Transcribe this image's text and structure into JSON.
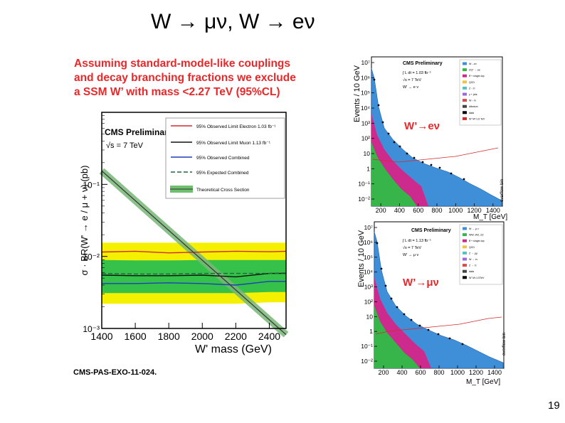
{
  "slide": {
    "title": "W → μν, W → eν",
    "claim_lines": [
      "Assuming standard-model-like couplings",
      "and decay branching fractions we exclude",
      "a SSM W’ with mass <2.27 TeV (95%CL)"
    ],
    "reference": "CMS-PAS-EXO-11-024.",
    "page_number": "19"
  },
  "colors": {
    "accent_red": "#e8282a",
    "yellow_band": "#f5f000",
    "green_band": "#36c24a",
    "mc_blue": "#3f8fd8",
    "mc_magenta": "#cc2a8c",
    "mc_green": "#37b44a"
  },
  "chart_data": [
    {
      "type": "line",
      "title": "CMS Preliminary",
      "energy_label": "√s = 7 TeV",
      "xlabel": "W' mass (GeV)",
      "ylabel": "σ · BR(W' → e / μ + ν) (pb)",
      "xlim": [
        1400,
        2500
      ],
      "ylim_log10": [
        -3,
        0
      ],
      "x_ticks": [
        "1400",
        "1600",
        "1800",
        "2000",
        "2200",
        "2400"
      ],
      "y_ticks": [
        "10⁻¹",
        "10⁻²",
        "10⁻³"
      ],
      "x_points": [
        1400,
        1600,
        1800,
        2000,
        2200,
        2400,
        2500
      ],
      "series": [
        {
          "name": "95% Observed Limit Electron 1.03 fb⁻¹",
          "color": "#d42a2a",
          "style": "solid",
          "values": [
            0.0115,
            0.0118,
            0.0112,
            0.0115,
            0.0118,
            0.0116,
            0.0118
          ]
        },
        {
          "name": "95% Observed Limit Muon 1.13 fb⁻¹",
          "color": "#111111",
          "style": "solid",
          "values": [
            0.0055,
            0.0054,
            0.0054,
            0.0055,
            0.0052,
            0.0058,
            0.0058
          ]
        },
        {
          "name": "95% Observed Combined",
          "color": "#1f3fb8",
          "style": "solid",
          "values": [
            0.0042,
            0.0042,
            0.0043,
            0.0042,
            0.004,
            0.0045,
            0.0045
          ]
        },
        {
          "name": "95% Expected Combined",
          "color": "#1a6a3a",
          "style": "dashed",
          "values": [
            0.0058,
            0.0057,
            0.0057,
            0.0058,
            0.0058,
            0.0058,
            0.0059
          ]
        }
      ],
      "band_2sigma": {
        "low": [
          0.0022,
          0.0022,
          0.0022,
          0.0022,
          0.0022,
          0.0023,
          0.0023
        ],
        "high": [
          0.0155,
          0.0155,
          0.0155,
          0.0155,
          0.0155,
          0.0155,
          0.0155
        ]
      },
      "band_1sigma": {
        "low": [
          0.0031,
          0.0031,
          0.0031,
          0.0031,
          0.0031,
          0.0032,
          0.0032
        ],
        "high": [
          0.0089,
          0.0088,
          0.0088,
          0.0089,
          0.0089,
          0.0089,
          0.0089
        ]
      },
      "theory": {
        "name": "Theoretical Cross Section",
        "x": [
          1400,
          2500
        ],
        "values": [
          0.154,
          0.00082
        ]
      },
      "legend": "top-right"
    },
    {
      "type": "bar",
      "title": "CMS Preliminary",
      "annotations": [
        "∫ L dt = 1.03 fb⁻¹",
        "√s = 7 TeV",
        "W' → e ν"
      ],
      "tag": "W’→eν",
      "xlabel": "M_T [GeV]",
      "ylabel": "Events / 10 GeV",
      "overflow_label": "overflow bin",
      "x_ticks": [
        "200",
        "400",
        "600",
        "800",
        "1000",
        "1200",
        "1400"
      ],
      "y_ticks": [
        "10⁷",
        "10⁶",
        "10⁵",
        "10⁴",
        "10³",
        "10²",
        "10",
        "1",
        "10⁻¹",
        "10⁻²"
      ],
      "legend_entries": [
        "W→eν",
        "Z/γ* → ee",
        "tt̄ + single-top",
        "QCD",
        "Z→ττ",
        "γ + jets",
        "W→τν",
        "diboson",
        "data",
        "W' M=1.6 TeV"
      ]
    },
    {
      "type": "bar",
      "title": "CMS Preliminary",
      "annotations": [
        "∫ L dt = 1.13 fb⁻¹",
        "√s = 7 TeV",
        "W' → μ ν"
      ],
      "tag": "W’→μν",
      "xlabel": "M_T [GeV]",
      "ylabel": "Events / 10 GeV",
      "overflow_label": "overflow bin",
      "x_ticks": [
        "200",
        "400",
        "600",
        "800",
        "1000",
        "1200",
        "1400"
      ],
      "y_ticks": [
        "10⁷",
        "10⁶",
        "10⁵",
        "10⁴",
        "10³",
        "10²",
        "10",
        "1",
        "10⁻¹",
        "10⁻²"
      ],
      "legend_entries": [
        "W → μ ν",
        "WW, WZ, ZZ",
        "tt̄ + single-top",
        "QCD",
        "Z → μμ",
        "W → τν",
        "Z → ττ",
        "data",
        "W' M=1.5TeV"
      ]
    }
  ]
}
